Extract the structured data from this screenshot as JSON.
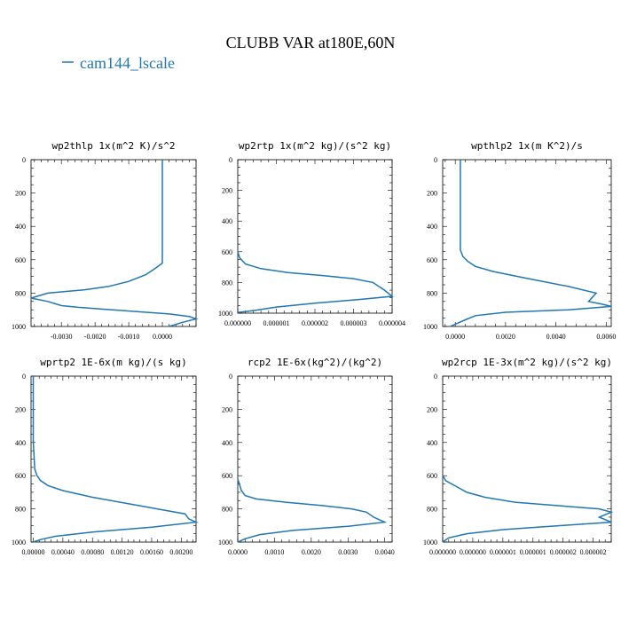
{
  "figure": {
    "title": "CLUBB VAR at180E,60N",
    "legend_label": "cam144_lscale",
    "line_color": "#1f77b4"
  },
  "chart_data": [
    {
      "type": "line",
      "title": "wp2thlp  1x(m^2 K)/s^2",
      "xlim": [
        -0.0039,
        0.001
      ],
      "xticks": [
        -0.003,
        -0.002,
        -0.001,
        0.0
      ],
      "xtick_labels": [
        "-0.0030",
        "-0.0020",
        "-0.0010",
        "0.0000"
      ],
      "ylim": [
        1000,
        0
      ],
      "yticks": [
        0,
        200,
        400,
        600,
        800,
        1000
      ],
      "ytick_labels": [
        "0",
        "200",
        "400",
        "600",
        "800",
        "1000"
      ],
      "series": [
        {
          "name": "cam144_lscale",
          "x": [
            0.0,
            0.0,
            0.0,
            0.0,
            0.0,
            -0.0002,
            -0.0005,
            -0.001,
            -0.0016,
            -0.0023,
            -0.0034,
            -0.0039,
            -0.0034,
            -0.003,
            -0.0025,
            -0.0015,
            0.0002,
            0.0008,
            0.001,
            0.0006,
            0.0002
          ],
          "y": [
            0,
            200,
            400,
            580,
            620,
            650,
            690,
            730,
            760,
            780,
            800,
            830,
            850,
            875,
            885,
            900,
            925,
            940,
            955,
            975,
            1000
          ]
        }
      ]
    },
    {
      "type": "line",
      "title": "wp2rtp  1x(m^2 kg)/(s^2 kg)",
      "xlim": [
        0.0,
        4e-06
      ],
      "xticks": [
        0.0,
        1e-06,
        2e-06,
        3e-06,
        4e-06
      ],
      "xtick_labels": [
        "0.000000",
        "0.000001",
        "0.000002",
        "0.000003",
        "0.000004"
      ],
      "ylim": [
        1000,
        0
      ],
      "yticks": [
        0,
        200,
        400,
        600,
        800,
        1000
      ],
      "ytick_labels": [
        "0",
        "200",
        "400",
        "600",
        "800",
        "1000"
      ],
      "series": [
        {
          "name": "cam144_lscale",
          "x": [
            0.0,
            5e-08,
            2e-07,
            6e-07,
            1.3e-06,
            2.2e-06,
            3e-06,
            3.5e-06,
            3.8e-06,
            4e-06,
            3.2e-06,
            2e-06,
            1e-06,
            5e-07,
            2e-07,
            0.0
          ],
          "y": [
            600,
            640,
            680,
            710,
            735,
            755,
            775,
            800,
            850,
            890,
            910,
            935,
            960,
            980,
            990,
            995
          ]
        }
      ]
    },
    {
      "type": "line",
      "title": "wpthlp2  1x(m K^2)/s",
      "xlim": [
        -0.0005,
        0.0062
      ],
      "xticks": [
        0.0,
        0.002,
        0.004,
        0.006
      ],
      "xtick_labels": [
        "0.0000",
        "0.0020",
        "0.0040",
        "0.0060"
      ],
      "ylim": [
        1000,
        0
      ],
      "yticks": [
        0,
        200,
        400,
        600,
        800,
        1000
      ],
      "ytick_labels": [
        "0",
        "200",
        "400",
        "600",
        "800",
        "1000"
      ],
      "series": [
        {
          "name": "cam144_lscale",
          "x": [
            0.0002,
            0.0002,
            0.0002,
            0.0002,
            0.0003,
            0.0005,
            0.0008,
            0.0015,
            0.0028,
            0.0045,
            0.0056,
            0.0053,
            0.0058,
            0.0062,
            0.0045,
            0.002,
            0.0008,
            0.0004,
            0.0001,
            -0.0002
          ],
          "y": [
            0,
            200,
            400,
            540,
            580,
            610,
            640,
            670,
            710,
            760,
            800,
            850,
            865,
            880,
            900,
            915,
            935,
            960,
            980,
            1000
          ]
        }
      ]
    },
    {
      "type": "line",
      "title": "wprtp2  1E-6x(m kg)/(s kg)",
      "xlim": [
        -3e-05,
        0.0022
      ],
      "xticks": [
        0.0,
        0.0004,
        0.0008,
        0.0012,
        0.0016,
        0.002
      ],
      "xtick_labels": [
        "0.00000",
        "0.00040",
        "0.00080",
        "0.00120",
        "0.00160",
        "0.00200"
      ],
      "ylim": [
        1000,
        0
      ],
      "yticks": [
        0,
        200,
        400,
        600,
        800,
        1000
      ],
      "ytick_labels": [
        "0",
        "200",
        "400",
        "600",
        "800",
        "1000"
      ],
      "series": [
        {
          "name": "cam144_lscale",
          "x": [
            0.0,
            0.0,
            0.0,
            2e-05,
            5e-05,
            0.0001,
            0.0002,
            0.0004,
            0.0008,
            0.0013,
            0.0018,
            0.00205,
            0.0021,
            0.0022,
            0.0016,
            0.0008,
            0.0003,
            0.0001,
            0.0
          ],
          "y": [
            0,
            200,
            400,
            560,
            600,
            630,
            660,
            690,
            730,
            770,
            810,
            830,
            860,
            880,
            910,
            940,
            965,
            985,
            1000
          ]
        }
      ]
    },
    {
      "type": "line",
      "title": "rcp2  1E-6x(kg^2)/(kg^2)",
      "xlim": [
        0.0,
        0.0042
      ],
      "xticks": [
        0.0,
        0.001,
        0.002,
        0.003,
        0.004
      ],
      "xtick_labels": [
        "0.0000",
        "0.0010",
        "0.0020",
        "0.0030",
        "0.0040"
      ],
      "ylim": [
        1000,
        0
      ],
      "yticks": [
        0,
        200,
        400,
        600,
        800,
        1000
      ],
      "ytick_labels": [
        "0",
        "200",
        "400",
        "600",
        "800",
        "1000"
      ],
      "series": [
        {
          "name": "cam144_lscale",
          "x": [
            0.0,
            0.0001,
            0.0002,
            0.0005,
            0.0013,
            0.0023,
            0.0031,
            0.0035,
            0.0037,
            0.004,
            0.003,
            0.0015,
            0.0006,
            0.0002,
            0.0
          ],
          "y": [
            620,
            690,
            720,
            740,
            760,
            780,
            800,
            820,
            850,
            880,
            905,
            930,
            955,
            980,
            1000
          ]
        }
      ]
    },
    {
      "type": "line",
      "title": "wp2rcp  1E-3x(m^2 kg)/(s^2 kg)",
      "xlim": [
        0.0,
        2.8e-06
      ],
      "xticks": [
        0.0,
        5e-07,
        1e-06,
        1.5e-06,
        2e-06,
        2.5e-06
      ],
      "xtick_labels": [
        "0.000000",
        "0.000000",
        "0.000001",
        "0.000001",
        "0.000002",
        "0.000002"
      ],
      "ylim": [
        1000,
        0
      ],
      "yticks": [
        0,
        200,
        400,
        600,
        800,
        1000
      ],
      "ytick_labels": [
        "0",
        "200",
        "400",
        "600",
        "800",
        "1000"
      ],
      "series": [
        {
          "name": "cam144_lscale",
          "x": [
            0.0,
            5e-08,
            2e-07,
            4e-07,
            7e-07,
            1.2e-06,
            1.9e-06,
            2.6e-06,
            2.8e-06,
            2.6e-06,
            2.8e-06,
            2e-06,
            1e-06,
            4e-07,
            1e-07,
            0.0
          ],
          "y": [
            600,
            630,
            660,
            700,
            730,
            760,
            780,
            800,
            820,
            850,
            880,
            900,
            925,
            950,
            975,
            1000
          ]
        }
      ]
    }
  ]
}
